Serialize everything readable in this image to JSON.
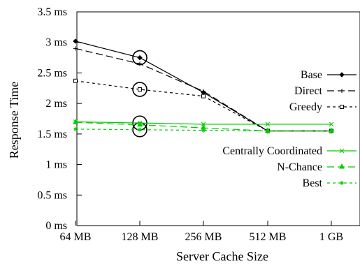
{
  "chart_data": {
    "type": "line",
    "xlabel": "Server Cache Size",
    "ylabel": "Response Time",
    "categories": [
      "64 MB",
      "128 MB",
      "256 MB",
      "512 MB",
      "1 GB"
    ],
    "y_ticks": [
      "0 ms",
      "0.5 ms",
      "1 ms",
      "1.5 ms",
      "2 ms",
      "2.5 ms",
      "3 ms",
      "3.5 ms"
    ],
    "ylim": [
      0,
      3.5
    ],
    "grid": false,
    "legend_position": "right",
    "circled_category": "128 MB",
    "series": [
      {
        "name": "Base",
        "values": [
          3.02,
          2.75,
          2.18,
          1.55,
          1.55
        ],
        "color": "#000000",
        "dash": "solid",
        "marker": "diamond"
      },
      {
        "name": "Direct",
        "values": [
          2.9,
          2.65,
          2.2,
          1.55,
          1.55
        ],
        "color": "#000000",
        "dash": "longdash",
        "marker": "plus"
      },
      {
        "name": "Greedy",
        "values": [
          2.37,
          2.23,
          2.12,
          1.55,
          1.55
        ],
        "color": "#000000",
        "dash": "shortdash",
        "marker": "square"
      },
      {
        "name": "Centrally Coordinated",
        "values": [
          1.7,
          1.68,
          1.66,
          1.66,
          1.66
        ],
        "color": "#00cc00",
        "dash": "solid",
        "marker": "x"
      },
      {
        "name": "N-Chance",
        "values": [
          1.69,
          1.65,
          1.6,
          1.55,
          1.55
        ],
        "color": "#00cc00",
        "dash": "longdash",
        "marker": "triangle"
      },
      {
        "name": "Best",
        "values": [
          1.58,
          1.57,
          1.56,
          1.55,
          1.55
        ],
        "color": "#00cc00",
        "dash": "shortdash",
        "marker": "star"
      }
    ]
  }
}
